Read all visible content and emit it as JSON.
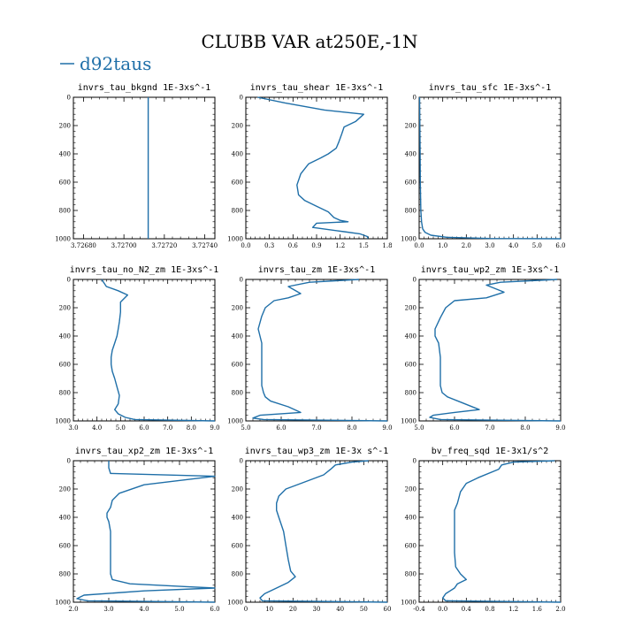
{
  "title": "CLUBB VAR at250E,-1N",
  "legend": {
    "label": "d92taus",
    "color": "#1f6fa8"
  },
  "chart_data": [
    {
      "type": "line",
      "title": "invrs_tau_bkgnd   1E-3xs^-1",
      "xlim": [
        3.72675,
        3.72745
      ],
      "ylim": [
        0,
        1000
      ],
      "xticks": [
        3.7268,
        3.727,
        3.7272,
        3.7274
      ],
      "xtick_labels": [
        "3.72680",
        "3.72700",
        "3.72720",
        "3.72740"
      ],
      "yticks": [
        0,
        200,
        400,
        600,
        800,
        1000
      ],
      "series": [
        {
          "name": "d92taus",
          "x": [
            3.72712,
            3.72712
          ],
          "y": [
            0,
            1000
          ]
        }
      ]
    },
    {
      "type": "line",
      "title": "invrs_tau_shear   1E-3xs^-1",
      "xlim": [
        0,
        1.8
      ],
      "ylim": [
        0,
        1000
      ],
      "xticks": [
        0,
        0.3,
        0.6,
        0.9,
        1.2,
        1.5,
        1.8
      ],
      "xtick_labels": [
        "0.0",
        "0.3",
        "0.6",
        "0.9",
        "1.2",
        "1.5",
        "1.8"
      ],
      "yticks": [
        0,
        200,
        400,
        600,
        800,
        1000
      ],
      "series": [
        {
          "name": "d92taus",
          "x": [
            0.15,
            0.5,
            1.0,
            1.5,
            1.4,
            1.25,
            1.22,
            1.18,
            1.15,
            1.05,
            0.95,
            0.8,
            0.7,
            0.65,
            0.67,
            0.75,
            0.9,
            1.05,
            1.12,
            1.2,
            1.3,
            0.9,
            0.85,
            1.25,
            1.45,
            1.55,
            1.55
          ],
          "y": [
            0,
            40,
            90,
            120,
            170,
            210,
            260,
            320,
            360,
            400,
            430,
            470,
            540,
            620,
            690,
            730,
            770,
            810,
            850,
            870,
            880,
            890,
            920,
            950,
            965,
            985,
            1000
          ]
        }
      ]
    },
    {
      "type": "line",
      "title": "invrs_tau_sfc   1E-3xs^-1",
      "xlim": [
        0,
        6
      ],
      "ylim": [
        0,
        1000
      ],
      "xticks": [
        0,
        1,
        2,
        3,
        4,
        5,
        6
      ],
      "xtick_labels": [
        "0.0",
        "1.0",
        "2.0",
        "3.0",
        "4.0",
        "5.0",
        "6.0"
      ],
      "yticks": [
        0,
        200,
        400,
        600,
        800,
        1000
      ],
      "series": [
        {
          "name": "d92taus",
          "x": [
            0.02,
            0.03,
            0.04,
            0.05,
            0.07,
            0.1,
            0.15,
            0.25,
            0.5,
            1.2,
            3.0,
            6.0
          ],
          "y": [
            0,
            200,
            400,
            600,
            800,
            880,
            930,
            955,
            975,
            990,
            998,
            1000
          ]
        }
      ]
    },
    {
      "type": "line",
      "title": "invrs_tau_no_N2_zm   1E-3xs^-1",
      "xlim": [
        3,
        9
      ],
      "ylim": [
        0,
        1000
      ],
      "xticks": [
        3,
        4,
        5,
        6,
        7,
        8,
        9
      ],
      "xtick_labels": [
        "3.0",
        "4.0",
        "5.0",
        "6.0",
        "7.0",
        "8.0",
        "9.0"
      ],
      "yticks": [
        0,
        200,
        400,
        600,
        800,
        1000
      ],
      "series": [
        {
          "name": "d92taus",
          "x": [
            4.2,
            4.4,
            4.9,
            5.3,
            5.0,
            5.0,
            4.95,
            4.9,
            4.85,
            4.75,
            4.65,
            4.6,
            4.6,
            4.65,
            4.75,
            4.85,
            4.95,
            4.9,
            4.75,
            4.9,
            5.2,
            5.6,
            9.0
          ],
          "y": [
            0,
            50,
            80,
            110,
            160,
            230,
            300,
            350,
            400,
            450,
            500,
            550,
            600,
            650,
            700,
            760,
            820,
            880,
            920,
            950,
            975,
            990,
            1000
          ]
        }
      ]
    },
    {
      "type": "line",
      "title": "invrs_tau_zm   1E-3xs^-1",
      "xlim": [
        5,
        9
      ],
      "ylim": [
        0,
        1000
      ],
      "xticks": [
        5,
        6,
        7,
        8,
        9
      ],
      "xtick_labels": [
        "5.0",
        "6.0",
        "7.0",
        "8.0",
        "9.0"
      ],
      "yticks": [
        0,
        200,
        400,
        600,
        800,
        1000
      ],
      "series": [
        {
          "name": "d92taus",
          "x": [
            8.2,
            6.8,
            6.2,
            6.55,
            6.2,
            5.8,
            5.55,
            5.45,
            5.35,
            5.4,
            5.45,
            5.45,
            5.45,
            5.45,
            5.5,
            5.55,
            5.7,
            6.2,
            6.55,
            5.4,
            5.2,
            5.5,
            9.0
          ],
          "y": [
            0,
            20,
            50,
            100,
            130,
            150,
            200,
            260,
            350,
            400,
            450,
            550,
            650,
            750,
            800,
            830,
            860,
            900,
            940,
            960,
            980,
            990,
            1000
          ]
        }
      ]
    },
    {
      "type": "line",
      "title": "invrs_tau_wp2_zm   1E-3xs^-1",
      "xlim": [
        5,
        9
      ],
      "ylim": [
        0,
        1000
      ],
      "xticks": [
        5,
        6,
        7,
        8,
        9
      ],
      "xtick_labels": [
        "5.0",
        "6.0",
        "7.0",
        "8.0",
        "9.0"
      ],
      "yticks": [
        0,
        200,
        400,
        600,
        800,
        1000
      ],
      "series": [
        {
          "name": "d92taus",
          "x": [
            8.9,
            7.3,
            6.9,
            7.4,
            6.9,
            6.0,
            5.75,
            5.6,
            5.45,
            5.45,
            5.55,
            5.6,
            5.6,
            5.6,
            5.65,
            5.8,
            6.2,
            6.7,
            6.0,
            5.4,
            5.3,
            5.6,
            9.0
          ],
          "y": [
            0,
            20,
            40,
            90,
            130,
            150,
            200,
            270,
            350,
            400,
            450,
            550,
            650,
            750,
            800,
            830,
            870,
            920,
            940,
            960,
            975,
            990,
            1000
          ]
        }
      ]
    },
    {
      "type": "line",
      "title": "invrs_tau_xp2_zm   1E-3xs^-1",
      "xlim": [
        2,
        6
      ],
      "ylim": [
        0,
        1000
      ],
      "xticks": [
        2,
        3,
        4,
        5,
        6
      ],
      "xtick_labels": [
        "2.0",
        "3.0",
        "4.0",
        "5.0",
        "6.0"
      ],
      "yticks": [
        0,
        200,
        400,
        600,
        800,
        1000
      ],
      "series": [
        {
          "name": "d92taus",
          "x": [
            3.0,
            3.0,
            3.05,
            6.0,
            4.0,
            3.3,
            3.1,
            3.05,
            2.95,
            2.95,
            3.0,
            3.05,
            3.05,
            3.05,
            3.05,
            3.1,
            3.6,
            5.2,
            6.0,
            4.0,
            2.3,
            2.1,
            2.4,
            6.0
          ],
          "y": [
            0,
            50,
            90,
            110,
            170,
            230,
            280,
            330,
            370,
            400,
            430,
            500,
            600,
            700,
            800,
            840,
            870,
            890,
            900,
            920,
            950,
            975,
            990,
            1000
          ]
        }
      ]
    },
    {
      "type": "line",
      "title": "invrs_tau_wp3_zm   1E-3x s^-1",
      "xlim": [
        0,
        60
      ],
      "ylim": [
        0,
        1000
      ],
      "xticks": [
        0,
        10,
        20,
        30,
        40,
        50,
        60
      ],
      "xtick_labels": [
        "0",
        "10",
        "20",
        "30",
        "40",
        "50",
        "60"
      ],
      "yticks": [
        0,
        200,
        400,
        600,
        800,
        1000
      ],
      "series": [
        {
          "name": "d92taus",
          "x": [
            52,
            45,
            38,
            36,
            33,
            25,
            17,
            14,
            13,
            13,
            14,
            15,
            16,
            17,
            18,
            19,
            21,
            18,
            13,
            8,
            6,
            7,
            60
          ],
          "y": [
            0,
            10,
            30,
            60,
            100,
            150,
            200,
            250,
            300,
            350,
            400,
            450,
            500,
            600,
            700,
            780,
            820,
            860,
            900,
            940,
            970,
            990,
            1000
          ]
        }
      ]
    },
    {
      "type": "line",
      "title": "bv_freq_sqd   1E-3x1/s^2",
      "xlim": [
        -0.4,
        2.0
      ],
      "ylim": [
        0,
        1000
      ],
      "xticks": [
        -0.4,
        0,
        0.4,
        0.8,
        1.2,
        1.6,
        2.0
      ],
      "xtick_labels": [
        "-0.4",
        "0.0",
        "0.4",
        "0.8",
        "1.2",
        "1.6",
        "2.0"
      ],
      "yticks": [
        0,
        200,
        400,
        600,
        800,
        1000
      ],
      "series": [
        {
          "name": "d92taus",
          "x": [
            1.9,
            1.2,
            1.0,
            0.95,
            0.6,
            0.4,
            0.3,
            0.25,
            0.2,
            0.2,
            0.2,
            0.2,
            0.2,
            0.22,
            0.3,
            0.4,
            0.25,
            0.2,
            0.05,
            0.0,
            0.05,
            2.0
          ],
          "y": [
            0,
            10,
            30,
            60,
            120,
            160,
            220,
            300,
            350,
            400,
            450,
            550,
            650,
            750,
            800,
            840,
            870,
            900,
            940,
            970,
            990,
            1000
          ]
        }
      ]
    }
  ]
}
